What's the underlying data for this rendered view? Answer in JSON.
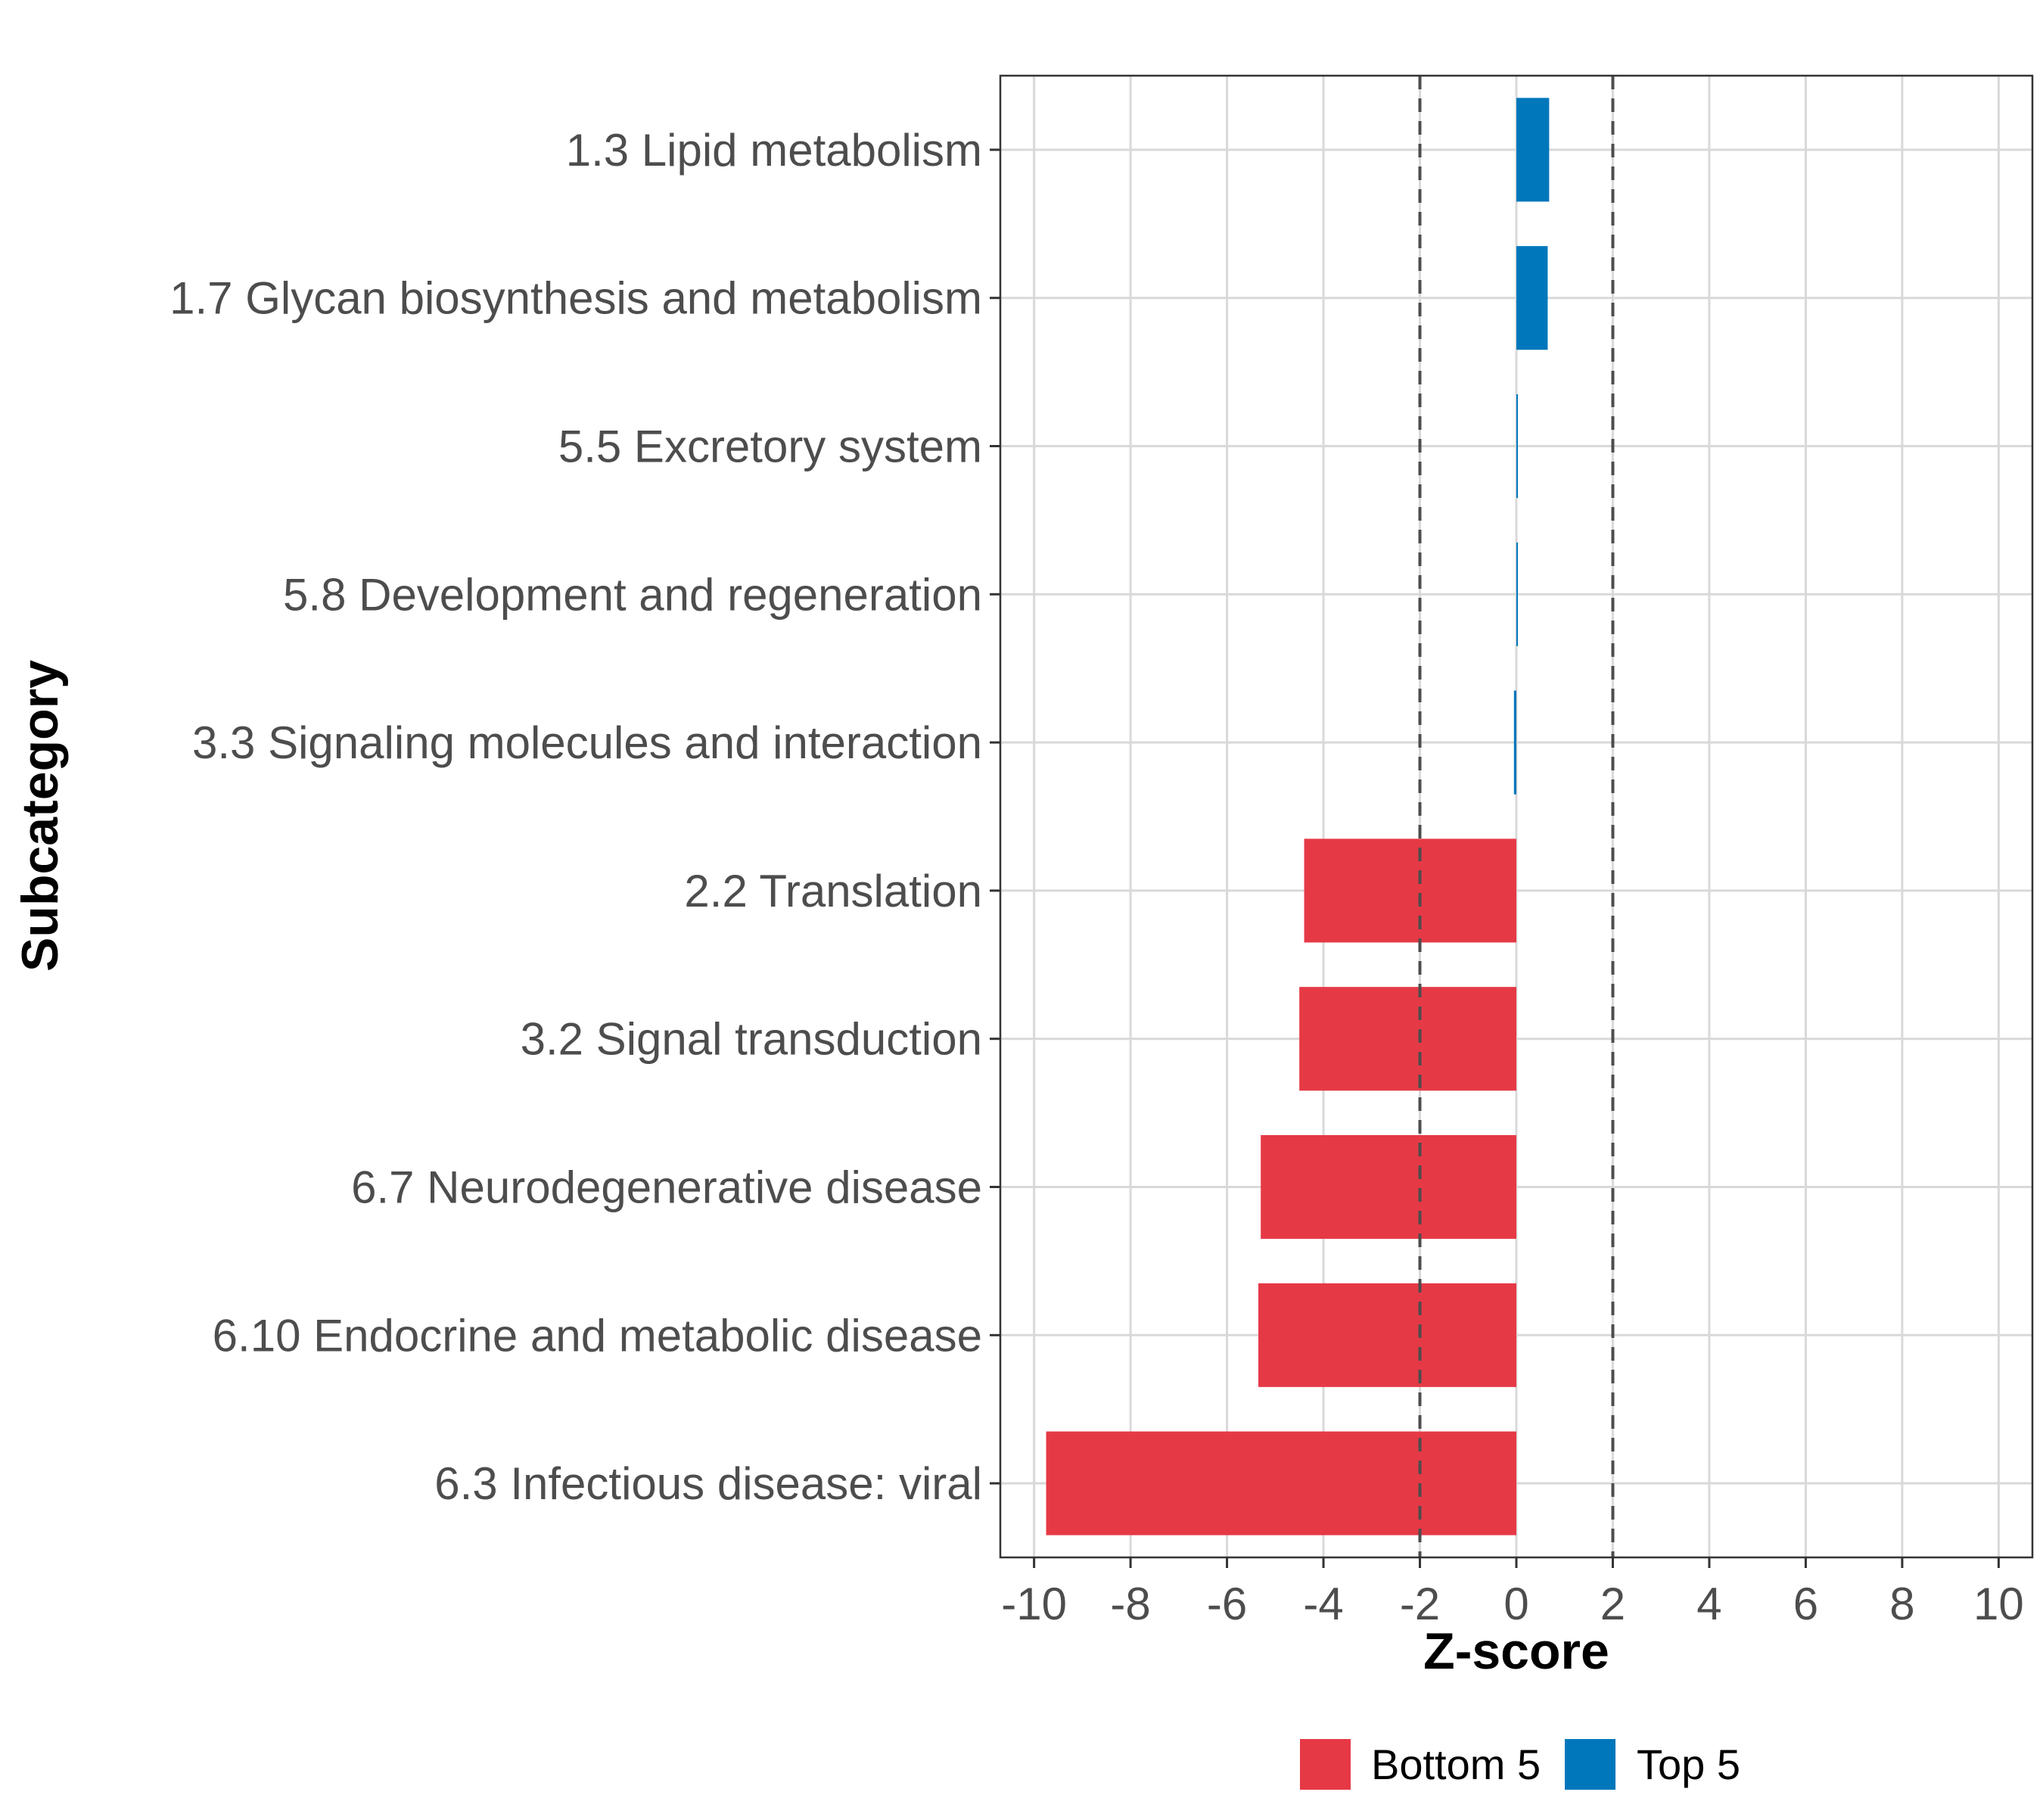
{
  "chart_data": {
    "type": "bar",
    "orientation": "horizontal",
    "xlabel": "Z-score",
    "ylabel": "Subcategory",
    "xlim": [
      -10.7,
      10.7
    ],
    "xticks": [
      -10,
      -8,
      -6,
      -4,
      -2,
      0,
      2,
      4,
      6,
      8,
      10
    ],
    "xtick_labels": [
      "-10",
      "-8",
      "-6",
      "-4",
      "-2",
      "0",
      "2",
      "4",
      "6",
      "8",
      "10"
    ],
    "reference_lines": [
      -2,
      2
    ],
    "grid": true,
    "legend_position": "bottom",
    "colors": {
      "Bottom 5": "#e63946",
      "Top 5": "#0077bb"
    },
    "legend": [
      "Bottom 5",
      "Top 5"
    ],
    "categories": [
      "1.3 Lipid metabolism",
      "1.7 Glycan biosynthesis and metabolism",
      "5.5 Excretory system",
      "5.8 Development and regeneration",
      "3.3 Signaling molecules and interaction",
      "2.2 Translation",
      "3.2 Signal transduction",
      "6.7 Neurodegenerative disease",
      "6.10 Endocrine and metabolic disease",
      "6.3 Infectious disease: viral"
    ],
    "values": [
      0.68,
      0.65,
      0.03,
      0.02,
      -0.05,
      -4.4,
      -4.5,
      -5.3,
      -5.35,
      -9.75
    ],
    "groups": [
      "Top 5",
      "Top 5",
      "Top 5",
      "Top 5",
      "Top 5",
      "Bottom 5",
      "Bottom 5",
      "Bottom 5",
      "Bottom 5",
      "Bottom 5"
    ]
  }
}
